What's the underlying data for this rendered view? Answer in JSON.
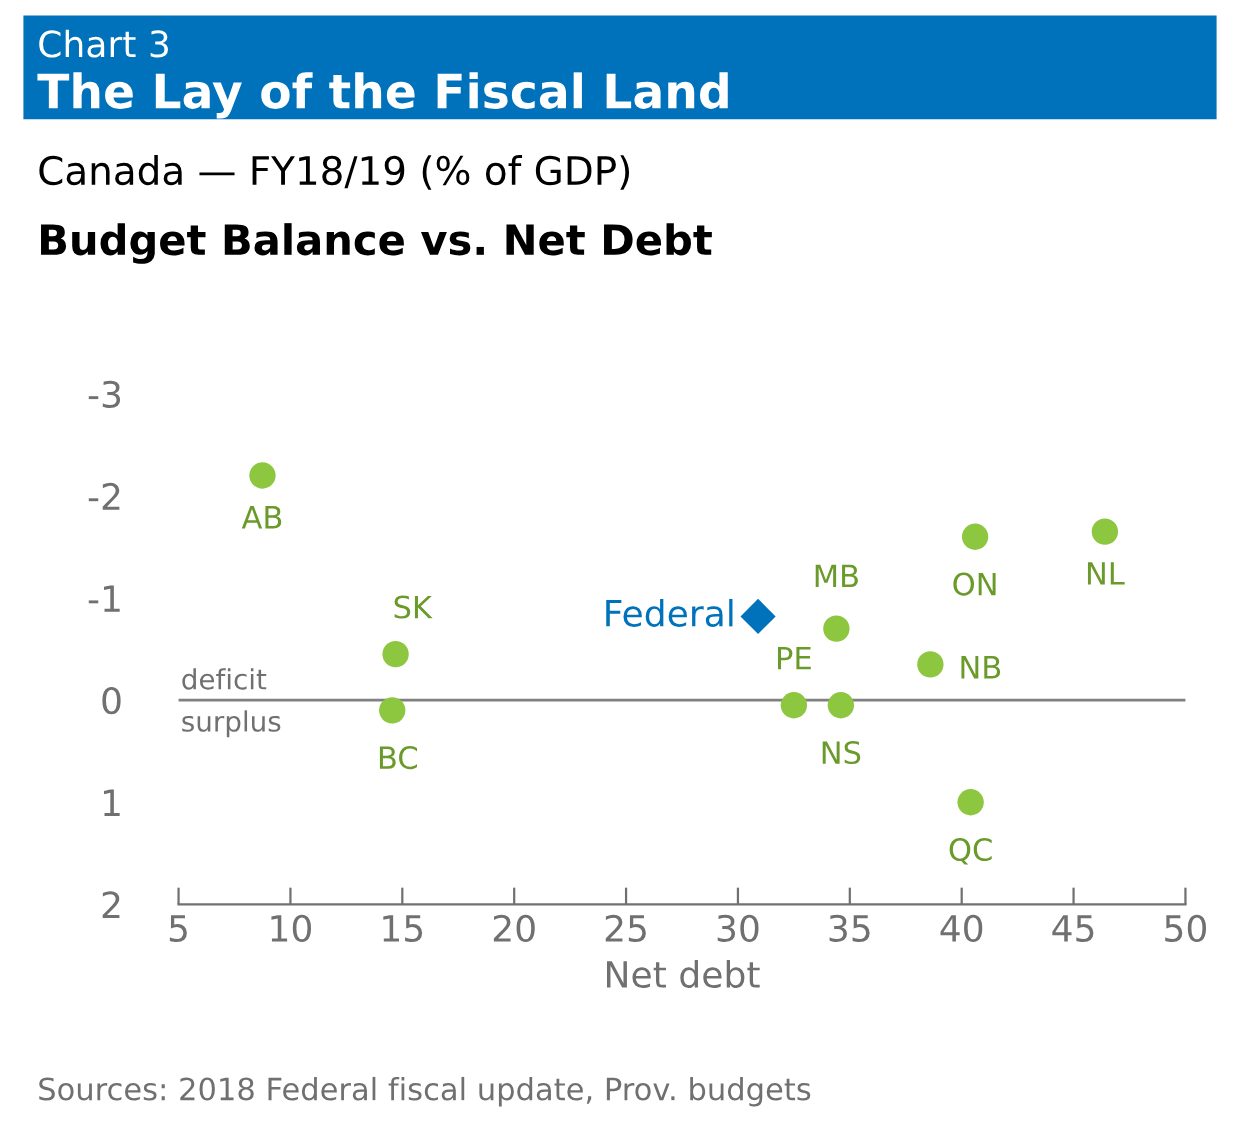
{
  "chart_data": {
    "type": "scatter",
    "title": "The Lay of the Fiscal Land",
    "subtitle": "Canada — FY18/19 (% of GDP)",
    "xlabel": "Net debt",
    "series": [
      {
        "color": "#8dc63f",
        "marker": "circle",
        "x": [
          8.75,
          14.7,
          14.55,
          34.4,
          32.5,
          34.6,
          38.6,
          40.6,
          46.4,
          40.4
        ],
        "values": [
          -2.2,
          -0.45,
          0.1,
          -0.7,
          0.05,
          0.05,
          -0.35,
          -1.6,
          -1.65,
          1.0
        ]
      },
      {
        "name": "Federal",
        "color": "#0072bc",
        "marker": "diamond",
        "x": [
          30.9
        ],
        "values": [
          -0.82
        ]
      }
    ],
    "annotations": [
      "Chart 3",
      "Budget Balance vs. Net Debt",
      "deficit",
      "surplus",
      "Sources: 2018 Federal fiscal update, Prov. budgets",
      {
        "text": "AB",
        "x": 8.75,
        "y": -2.2
      },
      {
        "text": "SK",
        "x": 14.7,
        "y": -0.45
      },
      {
        "text": "BC",
        "x": 14.55,
        "y": 0.1
      },
      {
        "text": "MB",
        "x": 34.4,
        "y": -0.7
      },
      {
        "text": "PE",
        "x": 32.5,
        "y": 0.05
      },
      {
        "text": "NS",
        "x": 34.6,
        "y": 0.05
      },
      {
        "text": "NB",
        "x": 38.6,
        "y": -0.35
      },
      {
        "text": "ON",
        "x": 40.6,
        "y": -1.6
      },
      {
        "text": "NL",
        "x": 46.4,
        "y": -1.65
      },
      {
        "text": "QC",
        "x": 40.4,
        "y": 1.0
      }
    ],
    "ref_lines": [
      {
        "axis": "y",
        "value": 0,
        "color": "#808080"
      }
    ],
    "xlim": [
      5,
      50
    ],
    "xticks": [
      5,
      10,
      15,
      20,
      25,
      30,
      35,
      40,
      45,
      50
    ],
    "ylim": [
      2,
      -3
    ],
    "yticks": [
      -3,
      -2,
      -1,
      0,
      1,
      2
    ],
    "grid": false
  }
}
